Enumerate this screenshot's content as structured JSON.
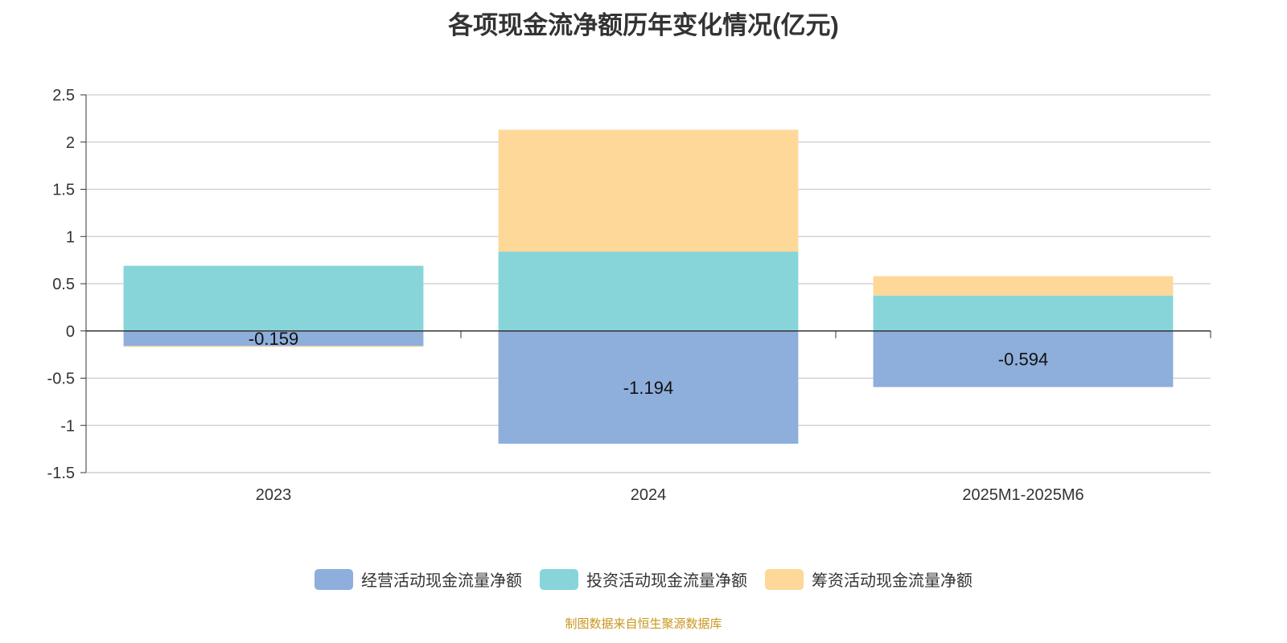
{
  "chart_data": {
    "type": "bar",
    "stacked": true,
    "title": "各项现金流净额历年变化情况(亿元)",
    "categories": [
      "2023",
      "2024",
      "2025M1-2025M6"
    ],
    "ylim": [
      -1.5,
      2.5
    ],
    "yticks": [
      "2.5",
      "2",
      "1.5",
      "1",
      "0.5",
      "0",
      "-0.5",
      "-1",
      "-1.5"
    ],
    "ytick_values": [
      2.5,
      2,
      1.5,
      1,
      0.5,
      0,
      -0.5,
      -1,
      -1.5
    ],
    "series": [
      {
        "name": "经营活动现金流量净额",
        "color": "#8eaedb",
        "values": [
          -0.159,
          -1.194,
          -0.594
        ],
        "labels": [
          "-0.159",
          "-1.194",
          "-0.594"
        ]
      },
      {
        "name": "投资活动现金流量净额",
        "color": "#87d5d9",
        "values": [
          0.69,
          0.84,
          0.375
        ]
      },
      {
        "name": "筹资活动现金流量净额",
        "color": "#fed899",
        "values": [
          -0.01,
          1.29,
          0.205
        ]
      }
    ],
    "grid": true,
    "legend": "bottom"
  },
  "source": "制图数据来自恒生聚源数据库"
}
